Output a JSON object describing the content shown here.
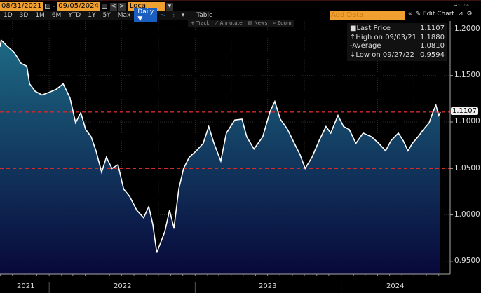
{
  "toolbar": {
    "start_date": "08/31/2021",
    "end_date": "09/05/2024",
    "currency": "Local CCY",
    "ranges": [
      "1D",
      "3D",
      "1M",
      "6M",
      "YTD",
      "1Y",
      "5Y",
      "Max"
    ],
    "frequency": "Daily ▼",
    "table_label": "Table",
    "tools": [
      "Track",
      "Annotate",
      "News",
      "Zoom"
    ],
    "add_data_placeholder": "Add Data",
    "edit_chart": "Edit Chart"
  },
  "legend": [
    {
      "label": "Last Price",
      "value": "1.1107"
    },
    {
      "label": "High on 09/03/21",
      "value": "1.1880"
    },
    {
      "label": "Average",
      "value": "1.0810"
    },
    {
      "label": "Low on 09/27/22",
      "value": "0.9594"
    }
  ],
  "last_price_tag": "1.1107",
  "colors": {
    "line": "#ffffff",
    "fill_top": "#1d6a84",
    "fill_bottom": "#08083a",
    "reference_line": "#d42a2a",
    "input": "#f0a030"
  },
  "chart_data": {
    "type": "area",
    "y_ticks": [
      "1.2000",
      "1.1500",
      "1.1000",
      "1.0500",
      "1.0000",
      "0.9500"
    ],
    "ylim": [
      0.94,
      1.21
    ],
    "x_labels": [
      "2021",
      "2022",
      "2023",
      "2024"
    ],
    "xlim": [
      "2021-08-31",
      "2024-09-05"
    ],
    "reference_lines": [
      1.1107,
      1.05
    ],
    "grid": true,
    "points": [
      [
        "2021-08-31",
        1.1808
      ],
      [
        "2021-09-03",
        1.188
      ],
      [
        "2021-09-17",
        1.182
      ],
      [
        "2021-10-05",
        1.175
      ],
      [
        "2021-10-23",
        1.163
      ],
      [
        "2021-11-06",
        1.16
      ],
      [
        "2021-11-13",
        1.141
      ],
      [
        "2021-11-27",
        1.133
      ],
      [
        "2021-12-14",
        1.129
      ],
      [
        "2022-01-01",
        1.132
      ],
      [
        "2022-01-18",
        1.135
      ],
      [
        "2022-02-05",
        1.141
      ],
      [
        "2022-02-22",
        1.126
      ],
      [
        "2022-03-08",
        1.099
      ],
      [
        "2022-03-21",
        1.11
      ],
      [
        "2022-04-02",
        1.092
      ],
      [
        "2022-04-16",
        1.084
      ],
      [
        "2022-04-28",
        1.069
      ],
      [
        "2022-05-12",
        1.046
      ],
      [
        "2022-05-24",
        1.062
      ],
      [
        "2022-06-07",
        1.05
      ],
      [
        "2022-06-22",
        1.054
      ],
      [
        "2022-07-06",
        1.028
      ],
      [
        "2022-07-21",
        1.02
      ],
      [
        "2022-08-08",
        1.005
      ],
      [
        "2022-08-25",
        0.997
      ],
      [
        "2022-09-07",
        1.009
      ],
      [
        "2022-09-17",
        0.99
      ],
      [
        "2022-09-22",
        0.975
      ],
      [
        "2022-09-27",
        0.9594
      ],
      [
        "2022-10-17",
        0.982
      ],
      [
        "2022-10-29",
        1.005
      ],
      [
        "2022-11-09",
        0.986
      ],
      [
        "2022-11-21",
        1.028
      ],
      [
        "2022-12-03",
        1.05
      ],
      [
        "2022-12-17",
        1.062
      ],
      [
        "2023-01-04",
        1.069
      ],
      [
        "2023-01-21",
        1.077
      ],
      [
        "2023-02-04",
        1.095
      ],
      [
        "2023-02-17",
        1.077
      ],
      [
        "2023-03-06",
        1.058
      ],
      [
        "2023-03-20",
        1.088
      ],
      [
        "2023-04-10",
        1.102
      ],
      [
        "2023-04-28",
        1.103
      ],
      [
        "2023-05-10",
        1.084
      ],
      [
        "2023-05-28",
        1.071
      ],
      [
        "2023-06-19",
        1.084
      ],
      [
        "2023-07-07",
        1.111
      ],
      [
        "2023-07-19",
        1.122
      ],
      [
        "2023-08-02",
        1.103
      ],
      [
        "2023-08-20",
        1.092
      ],
      [
        "2023-09-06",
        1.077
      ],
      [
        "2023-09-20",
        1.065
      ],
      [
        "2023-10-03",
        1.05
      ],
      [
        "2023-10-20",
        1.062
      ],
      [
        "2023-11-07",
        1.08
      ],
      [
        "2023-11-24",
        1.095
      ],
      [
        "2023-12-06",
        1.088
      ],
      [
        "2023-12-24",
        1.107
      ],
      [
        "2024-01-07",
        1.095
      ],
      [
        "2024-01-21",
        1.092
      ],
      [
        "2024-02-07",
        1.077
      ],
      [
        "2024-02-25",
        1.088
      ],
      [
        "2024-03-17",
        1.084
      ],
      [
        "2024-04-04",
        1.077
      ],
      [
        "2024-04-21",
        1.069
      ],
      [
        "2024-05-05",
        1.08
      ],
      [
        "2024-05-23",
        1.088
      ],
      [
        "2024-06-04",
        1.08
      ],
      [
        "2024-06-16",
        1.069
      ],
      [
        "2024-06-27",
        1.077
      ],
      [
        "2024-07-11",
        1.084
      ],
      [
        "2024-07-25",
        1.092
      ],
      [
        "2024-08-08",
        1.099
      ],
      [
        "2024-08-18",
        1.111
      ],
      [
        "2024-08-25",
        1.118
      ],
      [
        "2024-09-01",
        1.107
      ],
      [
        "2024-09-05",
        1.1107
      ]
    ]
  }
}
